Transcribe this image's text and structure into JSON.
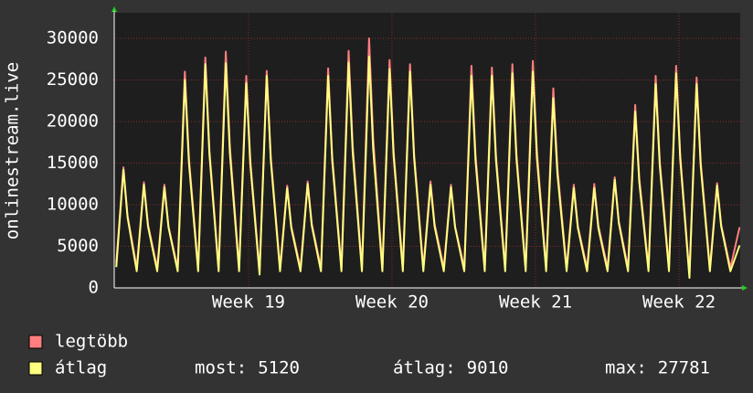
{
  "chart_data": {
    "type": "line",
    "y_label": "onlinestream.live",
    "ylim": [
      0,
      32000
    ],
    "yticks": [
      0,
      5000,
      10000,
      15000,
      20000,
      25000,
      30000
    ],
    "xlim": [
      0,
      30.58
    ],
    "xticks": [
      {
        "value": 6.56,
        "label": "Week 19"
      },
      {
        "value": 13.57,
        "label": "Week 20"
      },
      {
        "value": 20.58,
        "label": "Week 21"
      },
      {
        "value": 27.59,
        "label": "Week 22"
      }
    ],
    "grid": true,
    "x": [
      0.1,
      0.45,
      0.65,
      1.1,
      1.45,
      1.65,
      2.1,
      2.45,
      2.65,
      3.1,
      3.45,
      3.65,
      4.1,
      4.45,
      4.65,
      5.1,
      5.45,
      5.65,
      6.1,
      6.45,
      6.65,
      7.1,
      7.45,
      7.65,
      8.1,
      8.45,
      8.65,
      9.1,
      9.45,
      9.65,
      10.1,
      10.45,
      10.65,
      11.1,
      11.45,
      11.65,
      12.1,
      12.45,
      12.65,
      13.1,
      13.45,
      13.65,
      14.1,
      14.45,
      14.65,
      15.1,
      15.45,
      15.65,
      16.1,
      16.45,
      16.65,
      17.1,
      17.45,
      17.65,
      18.1,
      18.45,
      18.65,
      19.1,
      19.45,
      19.65,
      20.1,
      20.45,
      20.65,
      21.1,
      21.45,
      21.65,
      22.1,
      22.45,
      22.65,
      23.1,
      23.45,
      23.65,
      24.1,
      24.45,
      24.65,
      25.1,
      25.45,
      25.65,
      26.1,
      26.45,
      26.65,
      27.1,
      27.45,
      27.65,
      28.1,
      28.45,
      28.65,
      29.1,
      29.45,
      29.65,
      30.1,
      30.55
    ],
    "series": [
      {
        "name": "legtöbb",
        "color": "#ff7f7f",
        "values": [
          3000,
          14500,
          8700,
          2400,
          12700,
          7600,
          2400,
          12400,
          7400,
          2400,
          26000,
          15600,
          2400,
          27700,
          16600,
          2400,
          28400,
          17000,
          2400,
          25500,
          15300,
          2000,
          26100,
          15700,
          2400,
          12300,
          7400,
          2400,
          12800,
          7700,
          2400,
          26400,
          15800,
          2400,
          28500,
          17100,
          2400,
          30000,
          18000,
          2400,
          27400,
          16400,
          2400,
          26900,
          16100,
          2400,
          12800,
          7700,
          2400,
          12400,
          7400,
          2400,
          26700,
          16000,
          2400,
          26500,
          15900,
          2400,
          26900,
          16100,
          2400,
          27300,
          16400,
          2400,
          24000,
          14400,
          2400,
          12400,
          7400,
          2400,
          12500,
          7500,
          2400,
          13300,
          8000,
          2400,
          22000,
          13200,
          2400,
          25500,
          15300,
          2400,
          26700,
          16000,
          1600,
          25300,
          15200,
          2400,
          12600,
          7600,
          2400,
          7300
        ]
      },
      {
        "name": "átlag",
        "color": "#ffff80",
        "values": [
          2500,
          14200,
          8500,
          2000,
          12400,
          7400,
          2000,
          12100,
          7300,
          2000,
          25000,
          15000,
          2000,
          26900,
          16100,
          2000,
          27000,
          16200,
          2000,
          24600,
          14800,
          1600,
          25500,
          15300,
          2000,
          12000,
          7200,
          2000,
          12500,
          7500,
          2000,
          25500,
          15300,
          2000,
          27100,
          16300,
          2000,
          27800,
          16700,
          2000,
          26300,
          15800,
          2000,
          26000,
          15600,
          2000,
          12400,
          7400,
          2000,
          12100,
          7300,
          2000,
          25500,
          15300,
          2000,
          25500,
          15300,
          2000,
          25800,
          15500,
          2000,
          26000,
          15600,
          2000,
          22800,
          13700,
          2000,
          12000,
          7200,
          2000,
          12000,
          7200,
          2000,
          13000,
          7800,
          2000,
          21200,
          12700,
          2000,
          24500,
          14700,
          2000,
          25800,
          15500,
          1200,
          24500,
          14700,
          2000,
          12300,
          7400,
          2000,
          5120
        ]
      }
    ],
    "stats": [
      {
        "label": "most:",
        "value": 5120
      },
      {
        "label": "átlag:",
        "value": 9010
      },
      {
        "label": "max:",
        "value": 27781
      }
    ]
  }
}
